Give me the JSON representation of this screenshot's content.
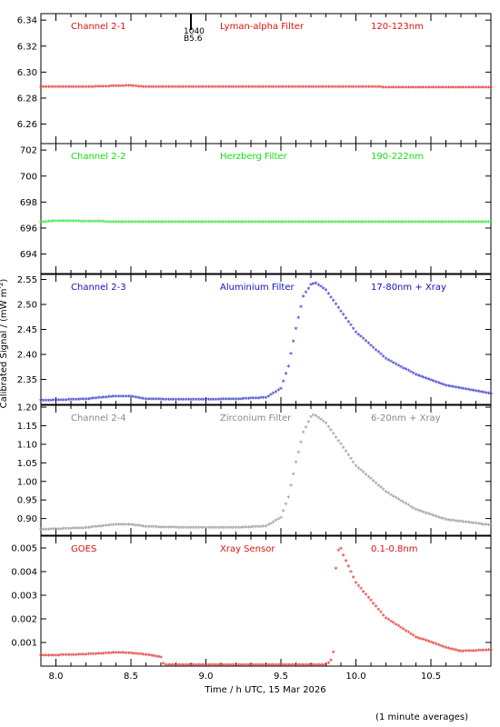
{
  "ylabel": "Calibrated Signal / (mW m",
  "ylabel_sup": "-2",
  "ylabel_tail": ")",
  "xlabel": "Time / h UTC, 15 Mar 2026",
  "footnote": "(1 minute averages)",
  "marker": {
    "x": 8.9,
    "label_top": "1040",
    "label_bottom": "B5.6"
  },
  "x_axis": {
    "min": 7.9,
    "max": 10.9,
    "ticks": [
      "8.0",
      "8.5",
      "9.0",
      "9.5",
      "10.0",
      "10.5"
    ]
  },
  "chart_data": [
    {
      "type": "scatter",
      "label_left": "Channel 2-1",
      "label_mid": "Lyman-alpha Filter",
      "label_right": "120-123nm",
      "color": "#e01010",
      "ylim": [
        6.245,
        6.345
      ],
      "yticks": [
        "6.26",
        "6.28",
        "6.30",
        "6.32",
        "6.34"
      ],
      "x": [
        7.9,
        8.2,
        8.5,
        8.6,
        9.0,
        9.5,
        10.0,
        10.5,
        10.9
      ],
      "y": [
        6.288,
        6.288,
        6.289,
        6.288,
        6.288,
        6.288,
        6.288,
        6.2875,
        6.2875
      ]
    },
    {
      "type": "scatter",
      "label_left": "Channel 2-2",
      "label_mid": "Herzberg Filter",
      "label_right": "190-222nm",
      "color": "#10e010",
      "ylim": [
        692.5,
        702.5
      ],
      "yticks": [
        "694",
        "696",
        "698",
        "700",
        "702"
      ],
      "x": [
        7.9,
        8.0,
        8.5,
        9.0,
        9.5,
        10.0,
        10.5,
        10.9
      ],
      "y": [
        696.4,
        696.5,
        696.4,
        696.4,
        696.4,
        696.4,
        696.4,
        696.4
      ]
    },
    {
      "type": "scatter",
      "label_left": "Channel 2-3",
      "label_mid": "Aluminium Filter",
      "label_right": "17-80nm + Xray",
      "color": "#1010c0",
      "ylim": [
        2.3,
        2.56
      ],
      "yticks": [
        "2.35",
        "2.40",
        "2.45",
        "2.50",
        "2.55"
      ],
      "x": [
        7.9,
        8.2,
        8.4,
        8.5,
        8.6,
        8.9,
        9.2,
        9.4,
        9.5,
        9.55,
        9.6,
        9.65,
        9.7,
        9.73,
        9.8,
        9.9,
        10.0,
        10.2,
        10.4,
        10.6,
        10.9
      ],
      "y": [
        2.306,
        2.309,
        2.315,
        2.315,
        2.309,
        2.308,
        2.309,
        2.312,
        2.33,
        2.375,
        2.45,
        2.515,
        2.538,
        2.542,
        2.527,
        2.485,
        2.443,
        2.39,
        2.358,
        2.336,
        2.32
      ]
    },
    {
      "type": "scatter",
      "label_left": "Channel 2-4",
      "label_mid": "Zirconium Filter",
      "label_right": "6-20nm + Xray",
      "color": "#888888",
      "ylim": [
        0.855,
        1.205
      ],
      "yticks": [
        "0.90",
        "0.95",
        "1.00",
        "1.05",
        "1.10",
        "1.15",
        "1.20"
      ],
      "x": [
        7.9,
        8.2,
        8.4,
        8.5,
        8.6,
        8.9,
        9.2,
        9.4,
        9.5,
        9.55,
        9.6,
        9.65,
        9.7,
        9.72,
        9.8,
        9.9,
        10.0,
        10.2,
        10.4,
        10.6,
        10.9
      ],
      "y": [
        0.868,
        0.873,
        0.882,
        0.882,
        0.876,
        0.873,
        0.873,
        0.877,
        0.9,
        0.955,
        1.05,
        1.13,
        1.172,
        1.178,
        1.155,
        1.098,
        1.04,
        0.97,
        0.922,
        0.895,
        0.88
      ]
    },
    {
      "type": "scatter",
      "label_left": "GOES",
      "label_mid": "Xray Sensor",
      "label_right": "0.1-0.8nm",
      "color": "#e01010",
      "ylim": [
        0,
        0.0055
      ],
      "yticks": [
        "0.001",
        "0.002",
        "0.003",
        "0.004",
        "0.005"
      ],
      "x": [
        7.9,
        8.1,
        8.3,
        8.4,
        8.5,
        8.6,
        8.7,
        8.72,
        9.0,
        9.5,
        9.8,
        9.83,
        9.85,
        9.87,
        9.9,
        9.92,
        10.0,
        10.2,
        10.4,
        10.6,
        10.7,
        10.9
      ],
      "y": [
        0.00042,
        0.00044,
        0.0005,
        0.00054,
        0.00052,
        0.00045,
        0.00035,
        2e-05,
        2e-05,
        2e-05,
        2e-05,
        0.00015,
        0.00055,
        0.0048,
        0.00495,
        0.0046,
        0.0035,
        0.002,
        0.0012,
        0.00075,
        0.0006,
        0.00065
      ]
    }
  ]
}
